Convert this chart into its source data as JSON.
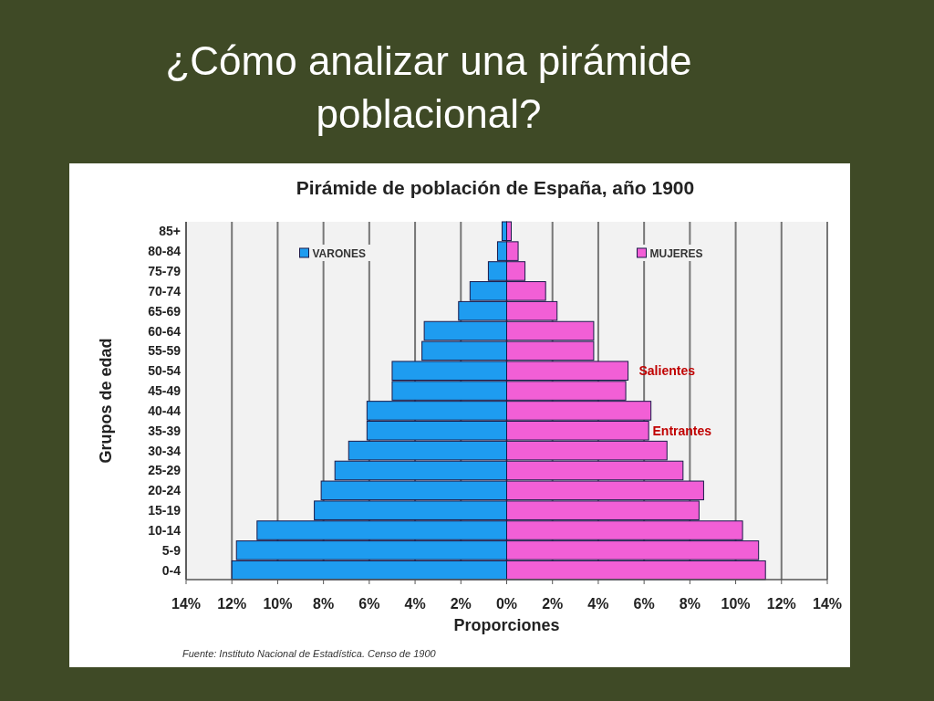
{
  "chart_data": {
    "type": "bar",
    "orientation": "horizontal",
    "stacked": true,
    "title": "¿Cómo analizar una pirámide poblacional?",
    "subtitle": "Pirámide de población de España, año 1900",
    "xlabel": "Proporciones",
    "ylabel": "Grupos de edad",
    "categories": [
      "85+",
      "80-84",
      "75-79",
      "70-74",
      "65-69",
      "60-64",
      "55-59",
      "50-54",
      "45-49",
      "40-44",
      "35-39",
      "30-34",
      "25-29",
      "20-24",
      "15-19",
      "10-14",
      "5-9",
      "0-4"
    ],
    "series": [
      {
        "name": "VARONES",
        "color": "#1e9cf0",
        "values": [
          -0.2,
          -0.4,
          -0.8,
          -1.6,
          -2.1,
          -3.6,
          -3.7,
          -5.0,
          -5.0,
          -6.1,
          -6.1,
          -6.9,
          -7.5,
          -8.1,
          -8.4,
          -10.9,
          -11.8,
          -12.0
        ]
      },
      {
        "name": "MUJERES",
        "color": "#f25fd6",
        "values": [
          0.2,
          0.5,
          0.8,
          1.7,
          2.2,
          3.8,
          3.8,
          5.3,
          5.2,
          6.3,
          6.2,
          7.0,
          7.7,
          8.6,
          8.4,
          10.3,
          11.0,
          11.3
        ]
      }
    ],
    "xlim": [
      -14,
      14
    ],
    "xticks": [
      {
        "value": -14,
        "label": "14%"
      },
      {
        "value": -12,
        "label": "12%"
      },
      {
        "value": -10,
        "label": "10%"
      },
      {
        "value": -8,
        "label": "8%"
      },
      {
        "value": -6,
        "label": "6%"
      },
      {
        "value": -4,
        "label": "4%"
      },
      {
        "value": -2,
        "label": "2%"
      },
      {
        "value": 0,
        "label": "0%"
      },
      {
        "value": 2,
        "label": "2%"
      },
      {
        "value": 4,
        "label": "4%"
      },
      {
        "value": 6,
        "label": "6%"
      },
      {
        "value": 8,
        "label": "8%"
      },
      {
        "value": 10,
        "label": "10%"
      },
      {
        "value": 12,
        "label": "12%"
      },
      {
        "value": 14,
        "label": "14%"
      }
    ],
    "grid": "x",
    "legend": "top",
    "annotations": [
      "Salientes",
      "Entrantes",
      "Fuente: Instituto Nacional de Estadística. Censo de 1900"
    ]
  }
}
